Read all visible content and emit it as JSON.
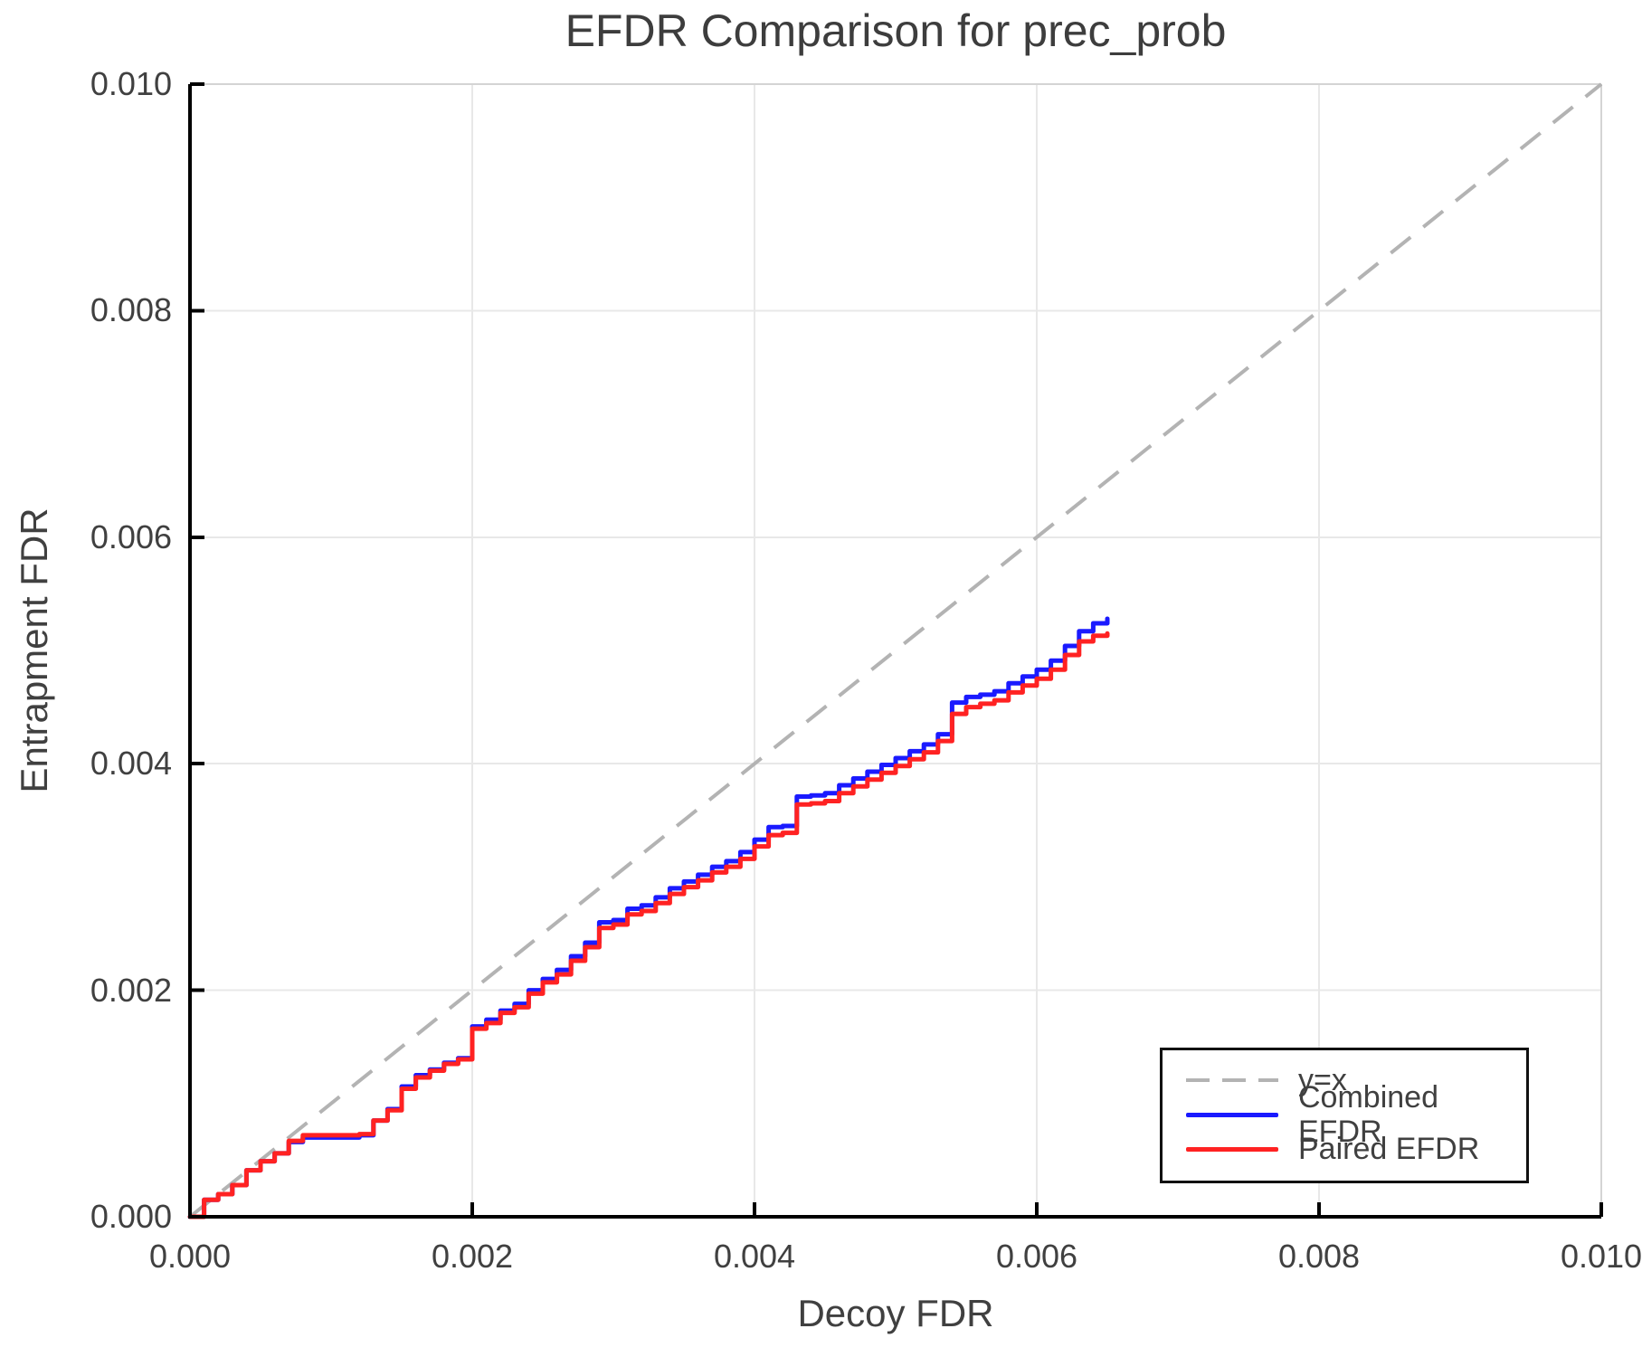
{
  "chart_data": {
    "type": "line",
    "title": "EFDR Comparison for prec_prob",
    "xlabel": "Decoy FDR",
    "ylabel": "Entrapment FDR",
    "xlim": [
      0,
      0.01
    ],
    "ylim": [
      0,
      0.01
    ],
    "grid": true,
    "legend_position": "lower right",
    "x_ticks": [
      0,
      0.002,
      0.004,
      0.006,
      0.008,
      0.01
    ],
    "x_tick_labels": [
      "0.000",
      "0.002",
      "0.004",
      "0.006",
      "0.008",
      "0.010"
    ],
    "y_ticks": [
      0,
      0.002,
      0.004,
      0.006,
      0.008,
      0.01
    ],
    "y_tick_labels": [
      "0.000",
      "0.002",
      "0.004",
      "0.006",
      "0.008",
      "0.010"
    ],
    "identity_line": {
      "label": "y=x",
      "color": "#b3b3b3",
      "style": "dashed",
      "x": [
        0,
        0.01
      ],
      "y": [
        0,
        0.01
      ]
    },
    "series": [
      {
        "name": "Combined EFDR",
        "color": "#1a1aff",
        "step": true,
        "x": [
          0,
          0.0001,
          0.0002,
          0.0003,
          0.0004,
          0.0005,
          0.0006,
          0.0007,
          0.0008,
          0.0009,
          0.001,
          0.0011,
          0.0012,
          0.0013,
          0.0014,
          0.0015,
          0.0016,
          0.0017,
          0.0018,
          0.0019,
          0.002,
          0.0021,
          0.0022,
          0.0023,
          0.0024,
          0.0025,
          0.0026,
          0.0027,
          0.0028,
          0.0029,
          0.003,
          0.0031,
          0.0032,
          0.0033,
          0.0034,
          0.0035,
          0.0036,
          0.0037,
          0.0038,
          0.0039,
          0.004,
          0.0041,
          0.0042,
          0.0043,
          0.0044,
          0.0045,
          0.0046,
          0.0047,
          0.0048,
          0.0049,
          0.005,
          0.0051,
          0.0052,
          0.0053,
          0.0054,
          0.0055,
          0.0056,
          0.0057,
          0.0058,
          0.0059,
          0.006,
          0.0061,
          0.0062,
          0.0063,
          0.0064,
          0.0065
        ],
        "y": [
          0,
          0.00015,
          0.0002,
          0.00028,
          0.00041,
          0.00049,
          0.00056,
          0.00066,
          0.0007,
          0.0007,
          0.0007,
          0.0007,
          0.00072,
          0.00085,
          0.00095,
          0.00115,
          0.00125,
          0.0013,
          0.00136,
          0.0014,
          0.00168,
          0.00174,
          0.00182,
          0.00188,
          0.002,
          0.0021,
          0.00218,
          0.0023,
          0.00242,
          0.0026,
          0.00262,
          0.00272,
          0.00275,
          0.00282,
          0.0029,
          0.00296,
          0.00302,
          0.00309,
          0.00314,
          0.00322,
          0.00333,
          0.00344,
          0.00345,
          0.00371,
          0.00372,
          0.00374,
          0.00381,
          0.00387,
          0.00393,
          0.00399,
          0.00405,
          0.00411,
          0.00417,
          0.00426,
          0.00454,
          0.00459,
          0.00461,
          0.00464,
          0.00471,
          0.00477,
          0.00483,
          0.00491,
          0.00504,
          0.00517,
          0.00524,
          0.00528
        ]
      },
      {
        "name": "Paired EFDR",
        "color": "#ff2222",
        "step": true,
        "x": [
          0,
          0.0001,
          0.0002,
          0.0003,
          0.0004,
          0.0005,
          0.0006,
          0.0007,
          0.0008,
          0.0009,
          0.001,
          0.0011,
          0.0012,
          0.0013,
          0.0014,
          0.0015,
          0.0016,
          0.0017,
          0.0018,
          0.0019,
          0.002,
          0.0021,
          0.0022,
          0.0023,
          0.0024,
          0.0025,
          0.0026,
          0.0027,
          0.0028,
          0.0029,
          0.003,
          0.0031,
          0.0032,
          0.0033,
          0.0034,
          0.0035,
          0.0036,
          0.0037,
          0.0038,
          0.0039,
          0.004,
          0.0041,
          0.0042,
          0.0043,
          0.0044,
          0.0045,
          0.0046,
          0.0047,
          0.0048,
          0.0049,
          0.005,
          0.0051,
          0.0052,
          0.0053,
          0.0054,
          0.0055,
          0.0056,
          0.0057,
          0.0058,
          0.0059,
          0.006,
          0.0061,
          0.0062,
          0.0063,
          0.0064,
          0.0065
        ],
        "y": [
          0,
          0.00015,
          0.0002,
          0.00028,
          0.00041,
          0.00049,
          0.00056,
          0.00067,
          0.00072,
          0.00072,
          0.00072,
          0.00072,
          0.00073,
          0.00085,
          0.00094,
          0.00113,
          0.00123,
          0.00129,
          0.00135,
          0.00139,
          0.00166,
          0.00171,
          0.0018,
          0.00185,
          0.00197,
          0.00207,
          0.00214,
          0.00226,
          0.00238,
          0.00255,
          0.00258,
          0.00267,
          0.0027,
          0.00277,
          0.00285,
          0.00291,
          0.00297,
          0.00304,
          0.00309,
          0.00316,
          0.00327,
          0.00337,
          0.00339,
          0.00364,
          0.00365,
          0.00367,
          0.00374,
          0.0038,
          0.00386,
          0.00392,
          0.00398,
          0.00404,
          0.0041,
          0.0042,
          0.00444,
          0.0045,
          0.00453,
          0.00456,
          0.00463,
          0.00469,
          0.00475,
          0.00483,
          0.00496,
          0.00508,
          0.00513,
          0.00515
        ]
      }
    ],
    "style": {
      "grid_color": "#e8e8e8",
      "frame_color": "#d4d4d4",
      "spine_color": "#000000",
      "text_color": "#404040",
      "background": "#ffffff"
    }
  }
}
